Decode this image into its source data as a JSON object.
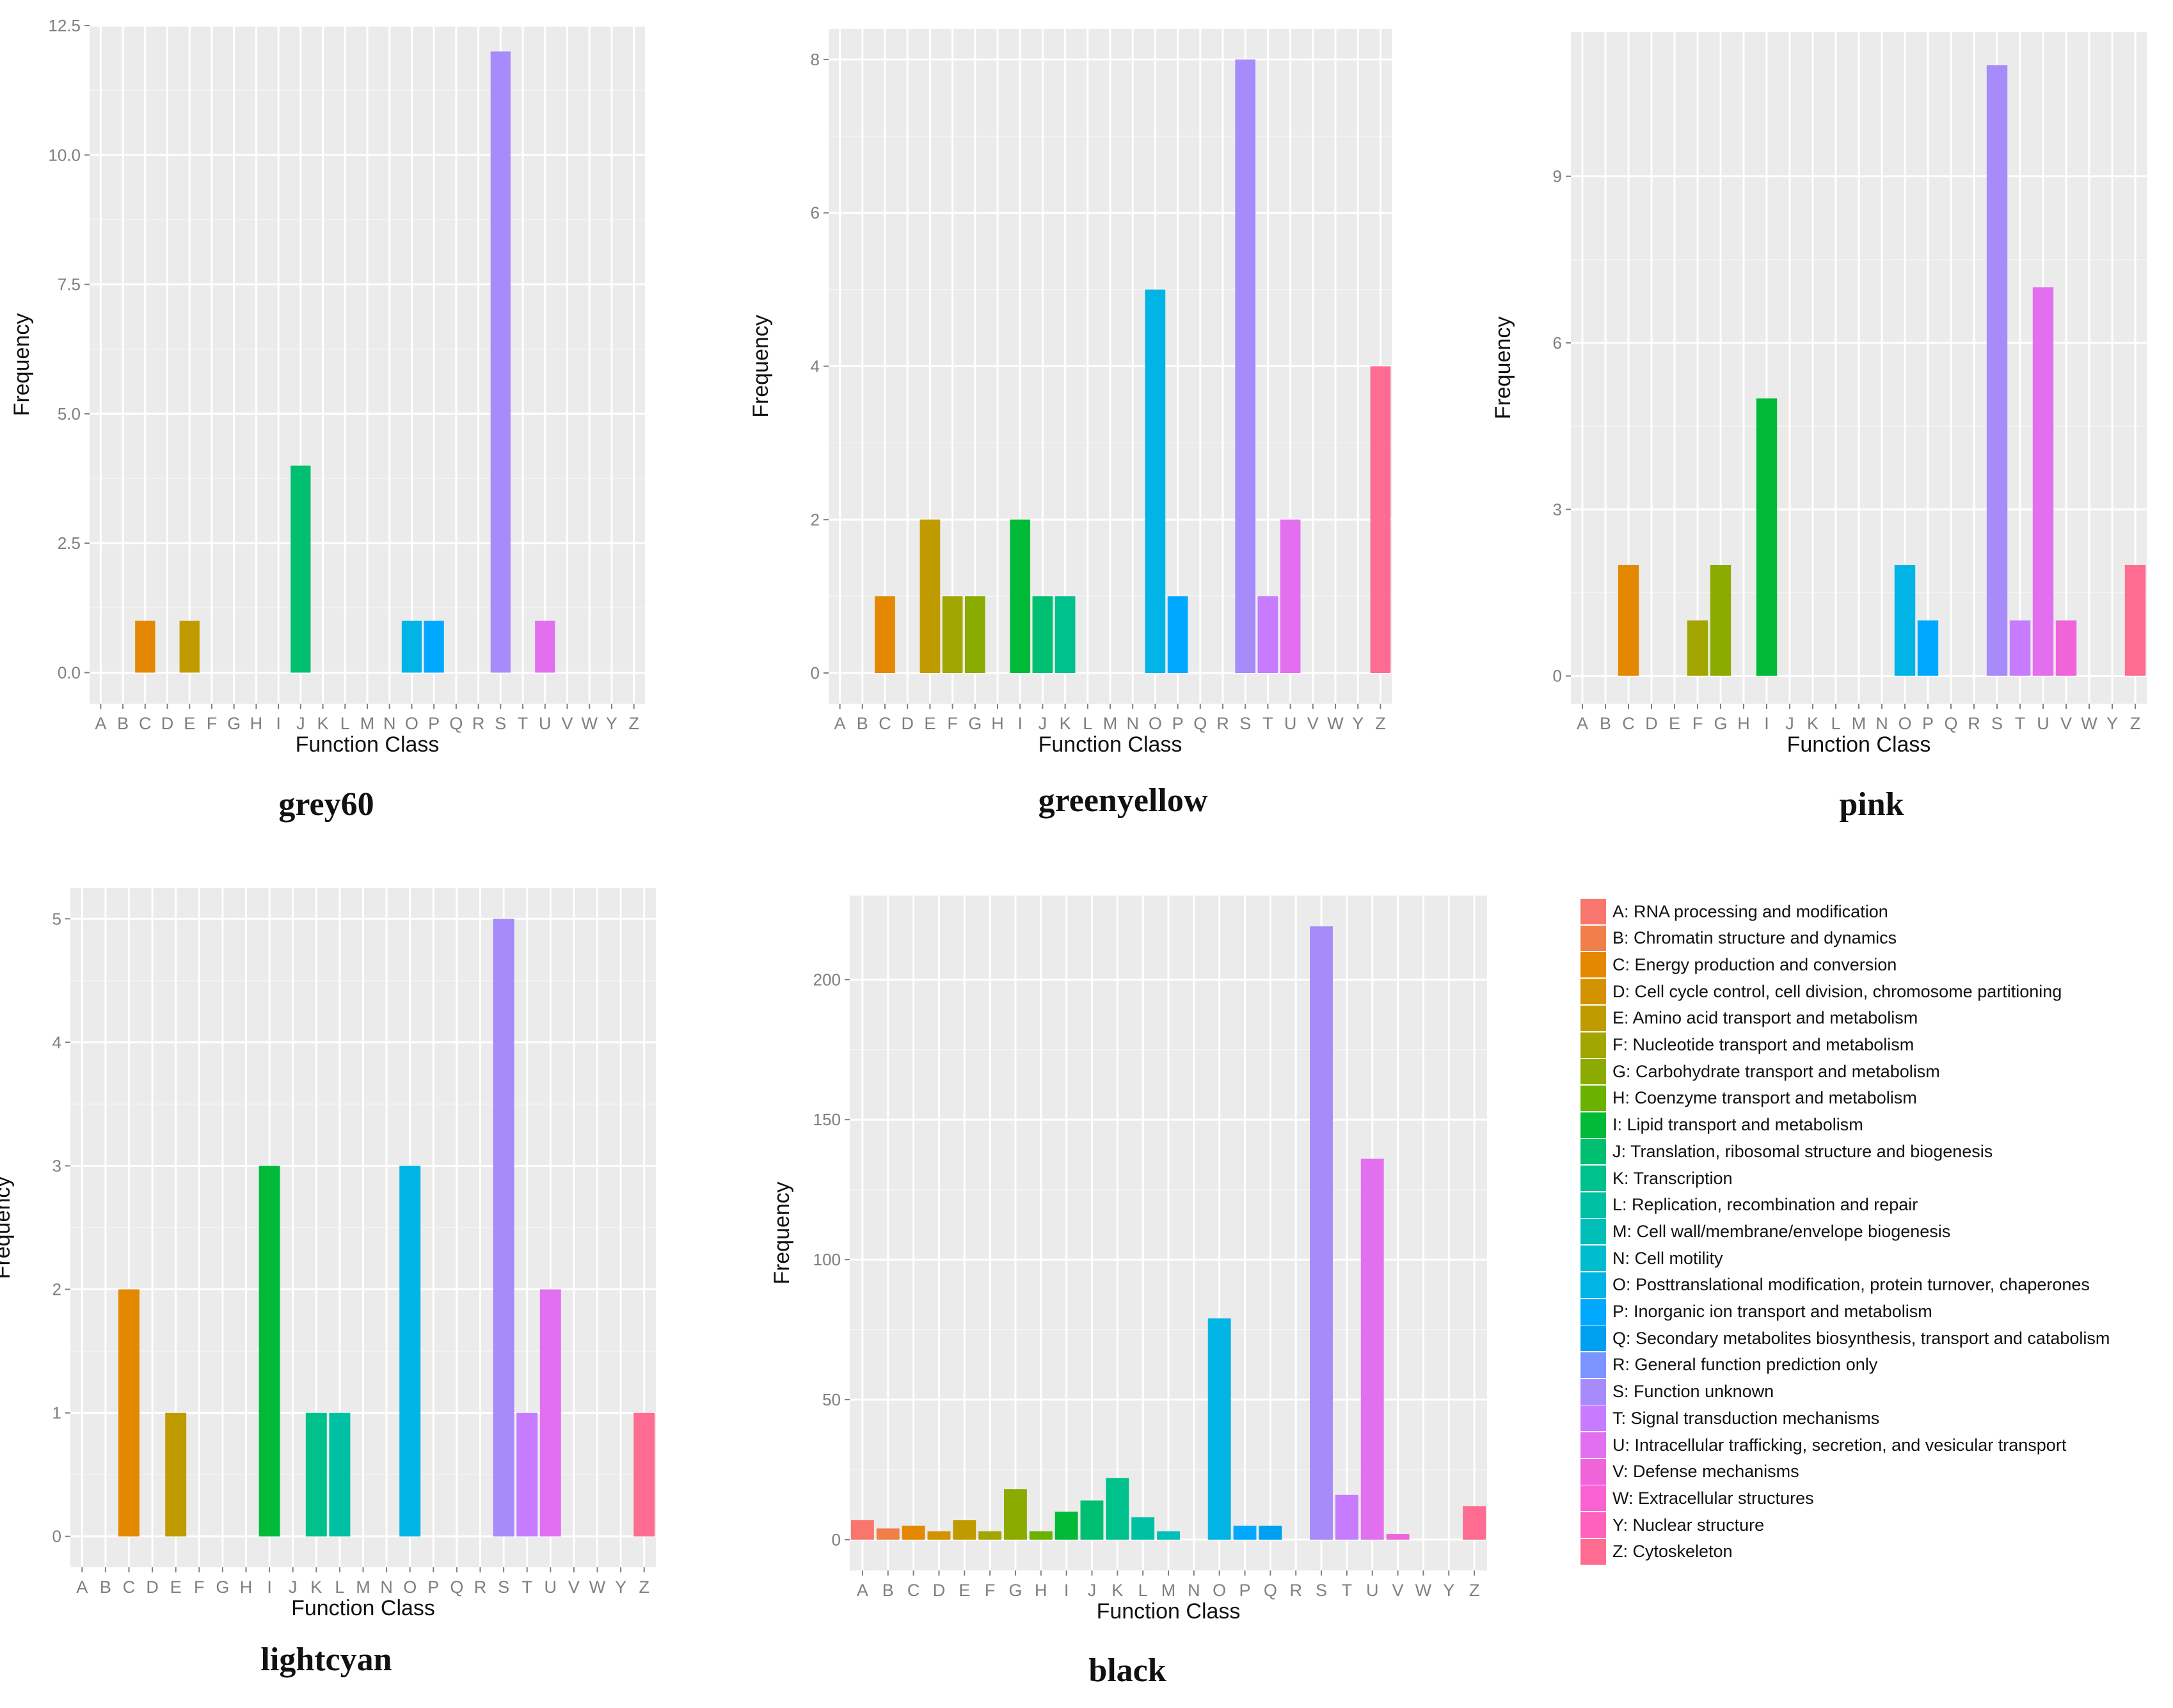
{
  "colors": {
    "panel_bg": "#ebebeb",
    "grid": "#ffffff",
    "tick_text": "#7f7f7f",
    "axis_title": "#111111"
  },
  "categories": [
    "A",
    "B",
    "C",
    "D",
    "E",
    "F",
    "G",
    "H",
    "I",
    "J",
    "K",
    "L",
    "M",
    "N",
    "O",
    "P",
    "Q",
    "R",
    "S",
    "T",
    "U",
    "V",
    "W",
    "Y",
    "Z"
  ],
  "category_colors": {
    "A": "#f8766d",
    "B": "#f07f4a",
    "C": "#e48801",
    "D": "#d39200",
    "E": "#c09b00",
    "F": "#a3a500",
    "G": "#8bab00",
    "H": "#6bb100",
    "I": "#00ba38",
    "J": "#00bf70",
    "K": "#00c08b",
    "L": "#00c0a4",
    "M": "#00bfb9",
    "N": "#00bccf",
    "O": "#00b4e6",
    "P": "#00a9ff",
    "Q": "#00a0f0",
    "R": "#7b94ff",
    "S": "#a78bfa",
    "T": "#c77cff",
    "U": "#e26ff0",
    "V": "#f064da",
    "W": "#fa62d4",
    "Y": "#ff62bc",
    "Z": "#ff6c91"
  },
  "legend": {
    "items": [
      {
        "code": "A",
        "label": "A: RNA processing and modification"
      },
      {
        "code": "B",
        "label": "B: Chromatin structure and dynamics"
      },
      {
        "code": "C",
        "label": "C: Energy production and conversion"
      },
      {
        "code": "D",
        "label": "D: Cell cycle control, cell division, chromosome partitioning"
      },
      {
        "code": "E",
        "label": "E: Amino acid transport and metabolism"
      },
      {
        "code": "F",
        "label": "F: Nucleotide transport and metabolism"
      },
      {
        "code": "G",
        "label": "G: Carbohydrate transport and metabolism"
      },
      {
        "code": "H",
        "label": "H: Coenzyme transport and metabolism"
      },
      {
        "code": "I",
        "label": "I: Lipid transport and metabolism"
      },
      {
        "code": "J",
        "label": "J: Translation, ribosomal structure and biogenesis"
      },
      {
        "code": "K",
        "label": "K: Transcription"
      },
      {
        "code": "L",
        "label": "L: Replication, recombination and repair"
      },
      {
        "code": "M",
        "label": "M: Cell wall/membrane/envelope biogenesis"
      },
      {
        "code": "N",
        "label": "N: Cell motility"
      },
      {
        "code": "O",
        "label": "O: Posttranslational modification, protein turnover, chaperones"
      },
      {
        "code": "P",
        "label": "P: Inorganic ion transport and metabolism"
      },
      {
        "code": "Q",
        "label": "Q: Secondary metabolites biosynthesis, transport and catabolism"
      },
      {
        "code": "R",
        "label": "R: General function prediction only"
      },
      {
        "code": "S",
        "label": "S: Function unknown"
      },
      {
        "code": "T",
        "label": "T: Signal transduction mechanisms"
      },
      {
        "code": "U",
        "label": "U: Intracellular trafficking, secretion, and vesicular transport"
      },
      {
        "code": "V",
        "label": "V: Defense mechanisms"
      },
      {
        "code": "W",
        "label": "W: Extracellular structures"
      },
      {
        "code": "Y",
        "label": "Y: Nuclear structure"
      },
      {
        "code": "Z",
        "label": "Z: Cytoskeleton"
      }
    ]
  },
  "chart_data": [
    {
      "type": "bar",
      "title": "grey60",
      "xlabel": "Function Class",
      "ylabel": "Frequency",
      "categories": [
        "A",
        "B",
        "C",
        "D",
        "E",
        "F",
        "G",
        "H",
        "I",
        "J",
        "K",
        "L",
        "M",
        "N",
        "O",
        "P",
        "Q",
        "R",
        "S",
        "T",
        "U",
        "V",
        "W",
        "Y",
        "Z"
      ],
      "values": [
        0,
        0,
        1,
        0,
        1,
        0,
        0,
        0,
        0,
        4,
        0,
        0,
        0,
        0,
        1,
        1,
        0,
        0,
        12,
        0,
        1,
        0,
        0,
        0,
        0
      ],
      "ylim": [
        -0.6,
        12.5
      ],
      "yticks": [
        0,
        2.5,
        5,
        7.5,
        10,
        12.5
      ],
      "ytick_labels": [
        "0.0",
        "2.5",
        "5.0",
        "7.5",
        "10.0",
        "12.5"
      ]
    },
    {
      "type": "bar",
      "title": "greenyellow",
      "xlabel": "Function Class",
      "ylabel": "Frequency",
      "categories": [
        "A",
        "B",
        "C",
        "D",
        "E",
        "F",
        "G",
        "H",
        "I",
        "J",
        "K",
        "L",
        "M",
        "N",
        "O",
        "P",
        "Q",
        "R",
        "S",
        "T",
        "U",
        "V",
        "W",
        "Y",
        "Z"
      ],
      "values": [
        0,
        0,
        1,
        0,
        2,
        1,
        1,
        0,
        2,
        1,
        1,
        0,
        0,
        0,
        5,
        1,
        0,
        0,
        8,
        1,
        2,
        0,
        0,
        0,
        4
      ],
      "ylim": [
        -0.4,
        8.4
      ],
      "yticks": [
        0,
        2,
        4,
        6,
        8
      ],
      "ytick_labels": [
        "0",
        "2",
        "4",
        "6",
        "8"
      ]
    },
    {
      "type": "bar",
      "title": "pink",
      "xlabel": "Function Class",
      "ylabel": "Frequency",
      "categories": [
        "A",
        "B",
        "C",
        "D",
        "E",
        "F",
        "G",
        "H",
        "I",
        "J",
        "K",
        "L",
        "M",
        "N",
        "O",
        "P",
        "Q",
        "R",
        "S",
        "T",
        "U",
        "V",
        "W",
        "Y",
        "Z"
      ],
      "values": [
        0,
        0,
        2,
        0,
        0,
        1,
        2,
        0,
        5,
        0,
        0,
        0,
        0,
        0,
        2,
        1,
        0,
        0,
        11,
        1,
        7,
        1,
        0,
        0,
        2
      ],
      "ylim": [
        -0.5,
        11.6
      ],
      "yticks": [
        0,
        3,
        6,
        9
      ],
      "ytick_labels": [
        "0",
        "3",
        "6",
        "9"
      ]
    },
    {
      "type": "bar",
      "title": "lightcyan",
      "xlabel": "Function Class",
      "ylabel": "Frequency",
      "categories": [
        "A",
        "B",
        "C",
        "D",
        "E",
        "F",
        "G",
        "H",
        "I",
        "J",
        "K",
        "L",
        "M",
        "N",
        "O",
        "P",
        "Q",
        "R",
        "S",
        "T",
        "U",
        "V",
        "W",
        "Y",
        "Z"
      ],
      "values": [
        0,
        0,
        2,
        0,
        1,
        0,
        0,
        0,
        3,
        0,
        1,
        1,
        0,
        0,
        3,
        0,
        0,
        0,
        5,
        1,
        2,
        0,
        0,
        0,
        1
      ],
      "ylim": [
        -0.25,
        5.25
      ],
      "yticks": [
        0,
        1,
        2,
        3,
        4,
        5
      ],
      "ytick_labels": [
        "0",
        "1",
        "2",
        "3",
        "4",
        "5"
      ]
    },
    {
      "type": "bar",
      "title": "black",
      "xlabel": "Function Class",
      "ylabel": "Frequency",
      "categories": [
        "A",
        "B",
        "C",
        "D",
        "E",
        "F",
        "G",
        "H",
        "I",
        "J",
        "K",
        "L",
        "M",
        "N",
        "O",
        "P",
        "Q",
        "R",
        "S",
        "T",
        "U",
        "V",
        "W",
        "Y",
        "Z"
      ],
      "values": [
        7,
        4,
        5,
        3,
        7,
        3,
        18,
        3,
        10,
        14,
        22,
        8,
        3,
        0,
        79,
        5,
        5,
        0,
        219,
        16,
        136,
        2,
        0,
        0,
        12
      ],
      "ylim": [
        -11,
        230
      ],
      "yticks": [
        0,
        50,
        100,
        150,
        200
      ],
      "ytick_labels": [
        "0",
        "50",
        "100",
        "150",
        "200"
      ]
    }
  ]
}
